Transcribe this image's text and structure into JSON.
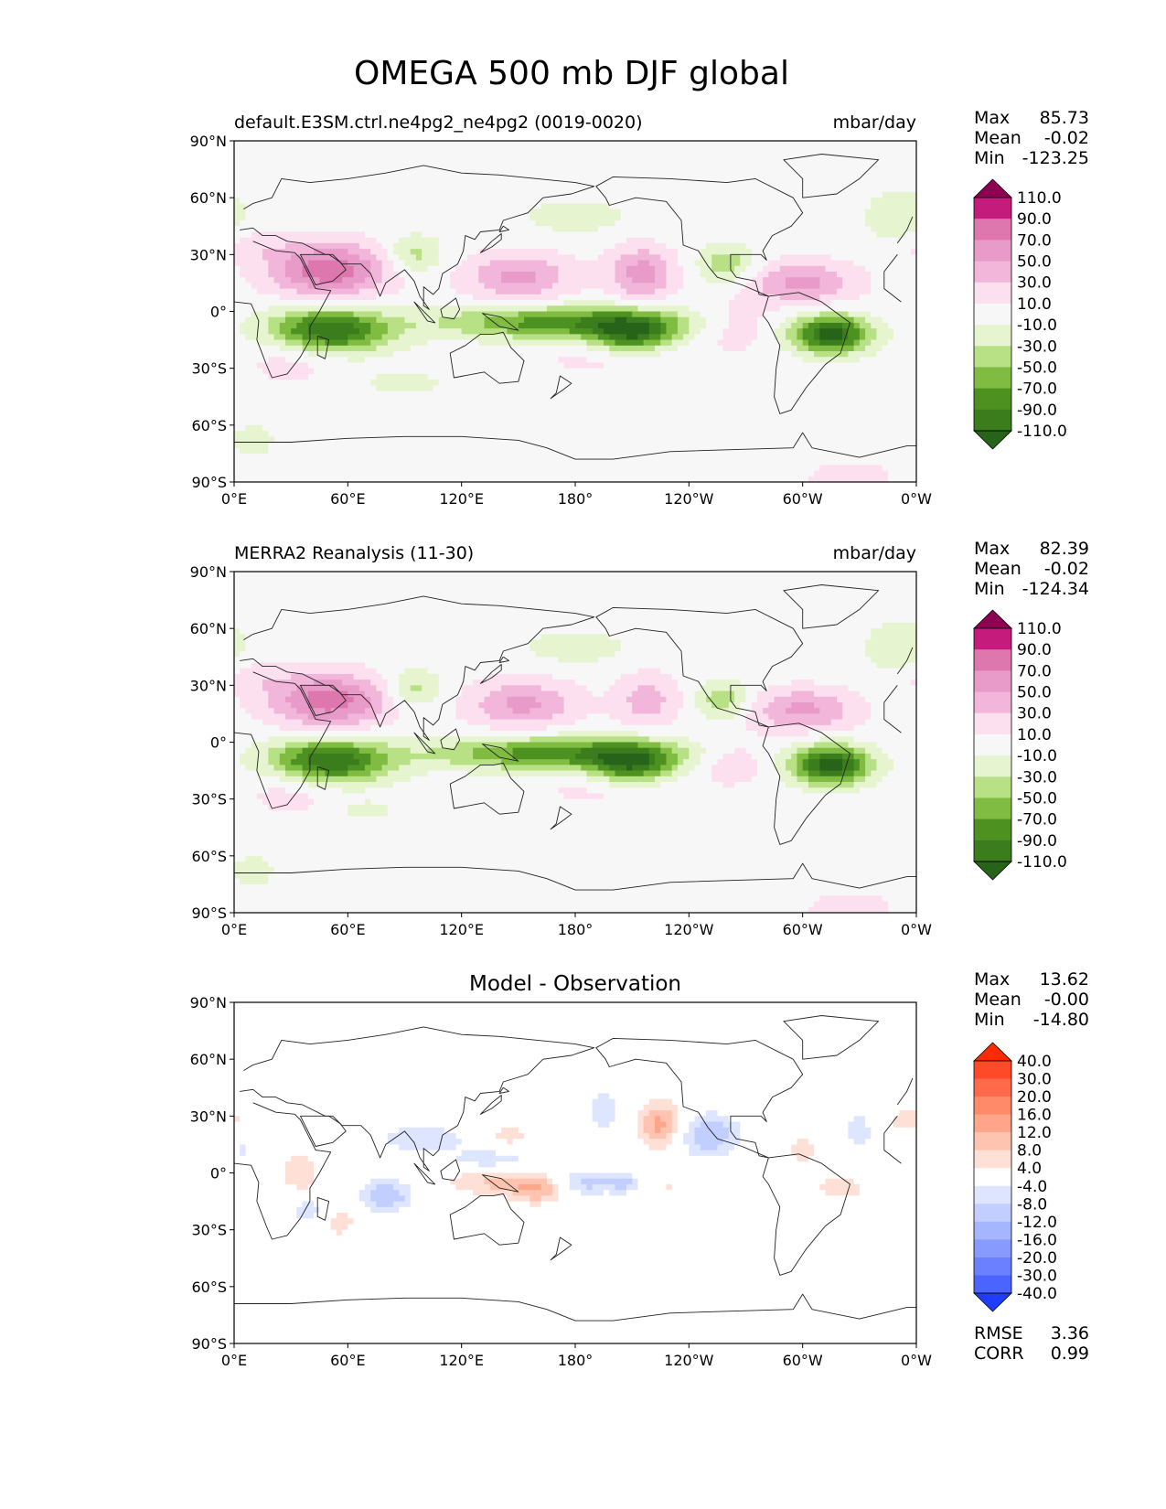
{
  "figure": {
    "title": "OMEGA 500 mb DJF global"
  },
  "axes": {
    "lat_ticks": [
      "90°N",
      "60°N",
      "30°N",
      "0°",
      "30°S",
      "60°S",
      "90°S"
    ],
    "lon_ticks": [
      "0°E",
      "60°E",
      "120°E",
      "180°",
      "120°W",
      "60°W",
      "0°W"
    ]
  },
  "colors": {
    "land_outline": "#222222",
    "map_background_fields": "#f7f7f7",
    "map_background_diff": "#ffffff"
  },
  "colorbars": {
    "fields": {
      "labels": [
        "110.0",
        "90.0",
        "70.0",
        "50.0",
        "30.0",
        "10.0",
        "-10.0",
        "-30.0",
        "-50.0",
        "-70.0",
        "-90.0",
        "-110.0"
      ],
      "colors": [
        "#8e0152",
        "#c51b7d",
        "#de77ae",
        "#e89ac8",
        "#f1b6da",
        "#fde0ef",
        "#f7f7f7",
        "#e6f5d0",
        "#b8e186",
        "#7fbc41",
        "#4d9221",
        "#3b7d1d",
        "#276419"
      ]
    },
    "diff": {
      "labels": [
        "40.0",
        "30.0",
        "20.0",
        "16.0",
        "12.0",
        "8.0",
        "4.0",
        "-4.0",
        "-8.0",
        "-12.0",
        "-16.0",
        "-20.0",
        "-30.0",
        "-40.0"
      ],
      "colors": [
        "#ff2a00",
        "#ff4a2a",
        "#ff6a4a",
        "#ff8a6a",
        "#ffa58a",
        "#ffc4b0",
        "#ffe0d6",
        "#ffffff",
        "#dde5ff",
        "#c2ceff",
        "#a5b5ff",
        "#869aff",
        "#6a80ff",
        "#4b64ff",
        "#1f3dff"
      ]
    }
  },
  "chart_data": [
    {
      "type": "heatmap",
      "panel": "test",
      "title": "default.E3SM.ctrl.ne4pg2_ne4pg2 (0019-0020)",
      "units": "mbar/day",
      "stats": {
        "max": "85.73",
        "mean": "-0.02",
        "min": "-123.25"
      },
      "xlim": [
        0,
        360
      ],
      "ylim": [
        -90,
        90
      ],
      "features": [
        {
          "lon": 50,
          "lat": 22,
          "peak": 85,
          "sx": 22,
          "sy": 10
        },
        {
          "lon": 150,
          "lat": 18,
          "peak": 55,
          "sx": 20,
          "sy": 9
        },
        {
          "lon": 215,
          "lat": 20,
          "peak": 60,
          "sx": 12,
          "sy": 10
        },
        {
          "lon": 300,
          "lat": 15,
          "peak": 55,
          "sx": 20,
          "sy": 8
        },
        {
          "lon": 265,
          "lat": -8,
          "peak": 25,
          "sx": 14,
          "sy": 9
        },
        {
          "lon": 30,
          "lat": -25,
          "peak": 20,
          "sx": 18,
          "sy": 10
        },
        {
          "lon": 195,
          "lat": -25,
          "peak": 15,
          "sx": 30,
          "sy": 8
        },
        {
          "lon": 10,
          "lat": 35,
          "peak": 20,
          "sx": 12,
          "sy": 6
        },
        {
          "lon": 325,
          "lat": -88,
          "peak": 20,
          "sx": 18,
          "sy": 7
        },
        {
          "lon": 50,
          "lat": -10,
          "peak": -110,
          "sx": 22,
          "sy": 8
        },
        {
          "lon": 175,
          "lat": -6,
          "peak": -85,
          "sx": 45,
          "sy": 6
        },
        {
          "lon": 210,
          "lat": -12,
          "peak": -90,
          "sx": 15,
          "sy": 7
        },
        {
          "lon": 315,
          "lat": -12,
          "peak": -120,
          "sx": 14,
          "sy": 7
        },
        {
          "lon": 95,
          "lat": 30,
          "peak": -40,
          "sx": 10,
          "sy": 7
        },
        {
          "lon": 260,
          "lat": 25,
          "peak": -45,
          "sx": 10,
          "sy": 7
        },
        {
          "lon": 180,
          "lat": 50,
          "peak": -22,
          "sx": 20,
          "sy": 6
        },
        {
          "lon": 350,
          "lat": 50,
          "peak": -25,
          "sx": 12,
          "sy": 10
        },
        {
          "lon": 90,
          "lat": -38,
          "peak": -22,
          "sx": 15,
          "sy": 4
        },
        {
          "lon": 10,
          "lat": -68,
          "peak": -22,
          "sx": 8,
          "sy": 6
        }
      ]
    },
    {
      "type": "heatmap",
      "panel": "reference",
      "title": "MERRA2 Reanalysis (11-30)",
      "units": "mbar/day",
      "stats": {
        "max": "82.39",
        "mean": "-0.02",
        "min": "-124.34"
      },
      "xlim": [
        0,
        360
      ],
      "ylim": [
        -90,
        90
      ],
      "features": [
        {
          "lon": 50,
          "lat": 22,
          "peak": 82,
          "sx": 22,
          "sy": 10
        },
        {
          "lon": 152,
          "lat": 20,
          "peak": 55,
          "sx": 20,
          "sy": 9
        },
        {
          "lon": 218,
          "lat": 22,
          "peak": 40,
          "sx": 12,
          "sy": 10
        },
        {
          "lon": 300,
          "lat": 17,
          "peak": 55,
          "sx": 20,
          "sy": 8
        },
        {
          "lon": 262,
          "lat": -10,
          "peak": 25,
          "sx": 14,
          "sy": 9
        },
        {
          "lon": 30,
          "lat": -25,
          "peak": 20,
          "sx": 18,
          "sy": 10
        },
        {
          "lon": 195,
          "lat": -25,
          "peak": 15,
          "sx": 30,
          "sy": 8
        },
        {
          "lon": 10,
          "lat": 35,
          "peak": 20,
          "sx": 12,
          "sy": 6
        },
        {
          "lon": 325,
          "lat": -88,
          "peak": 20,
          "sx": 18,
          "sy": 7
        },
        {
          "lon": 50,
          "lat": -10,
          "peak": -110,
          "sx": 22,
          "sy": 8
        },
        {
          "lon": 172,
          "lat": -6,
          "peak": -85,
          "sx": 45,
          "sy": 6
        },
        {
          "lon": 210,
          "lat": -12,
          "peak": -90,
          "sx": 15,
          "sy": 7
        },
        {
          "lon": 315,
          "lat": -12,
          "peak": -124,
          "sx": 14,
          "sy": 7
        },
        {
          "lon": 95,
          "lat": 28,
          "peak": -40,
          "sx": 10,
          "sy": 7
        },
        {
          "lon": 258,
          "lat": 22,
          "peak": -45,
          "sx": 10,
          "sy": 7
        },
        {
          "lon": 180,
          "lat": 50,
          "peak": -22,
          "sx": 20,
          "sy": 6
        },
        {
          "lon": 350,
          "lat": 50,
          "peak": -25,
          "sx": 12,
          "sy": 10
        },
        {
          "lon": 70,
          "lat": -36,
          "peak": -18,
          "sx": 12,
          "sy": 4
        },
        {
          "lon": 10,
          "lat": -68,
          "peak": -22,
          "sx": 8,
          "sy": 6
        }
      ]
    },
    {
      "type": "heatmap",
      "panel": "difference",
      "title": "Model - Observation",
      "stats": {
        "max": "13.62",
        "mean": "-0.00",
        "min": "-14.80"
      },
      "metrics": {
        "rmse": "3.36",
        "corr": "0.99"
      },
      "xlim": [
        0,
        360
      ],
      "ylim": [
        -90,
        90
      ],
      "features": [
        {
          "lon": 225,
          "lat": 25,
          "peak": 14,
          "sx": 8,
          "sy": 9
        },
        {
          "lon": 140,
          "lat": -5,
          "peak": 9,
          "sx": 20,
          "sy": 5
        },
        {
          "lon": 160,
          "lat": -10,
          "peak": 9,
          "sx": 10,
          "sy": 5
        },
        {
          "lon": 35,
          "lat": 0,
          "peak": 7,
          "sx": 8,
          "sy": 8
        },
        {
          "lon": 55,
          "lat": -25,
          "peak": 6,
          "sx": 8,
          "sy": 8
        },
        {
          "lon": 145,
          "lat": 20,
          "peak": 6,
          "sx": 8,
          "sy": 5
        },
        {
          "lon": 300,
          "lat": 13,
          "peak": 6,
          "sx": 6,
          "sy": 7
        },
        {
          "lon": 320,
          "lat": -8,
          "peak": 6,
          "sx": 12,
          "sy": 5
        },
        {
          "lon": 355,
          "lat": 28,
          "peak": 6,
          "sx": 8,
          "sy": 6
        },
        {
          "lon": 230,
          "lat": -8,
          "peak": 5,
          "sx": 3,
          "sy": 3
        },
        {
          "lon": 80,
          "lat": -12,
          "peak": -12,
          "sx": 10,
          "sy": 6
        },
        {
          "lon": 185,
          "lat": -5,
          "peak": -10,
          "sx": 10,
          "sy": 5
        },
        {
          "lon": 205,
          "lat": -5,
          "peak": -9,
          "sx": 6,
          "sy": 4
        },
        {
          "lon": 250,
          "lat": 20,
          "peak": -12,
          "sx": 12,
          "sy": 8
        },
        {
          "lon": 195,
          "lat": 32,
          "peak": -8,
          "sx": 5,
          "sy": 8
        },
        {
          "lon": 100,
          "lat": 18,
          "peak": -8,
          "sx": 16,
          "sy": 5
        },
        {
          "lon": 135,
          "lat": 7,
          "peak": -7,
          "sx": 15,
          "sy": 4
        },
        {
          "lon": 40,
          "lat": -20,
          "peak": -7,
          "sx": 8,
          "sy": 5
        },
        {
          "lon": 5,
          "lat": 12,
          "peak": -5,
          "sx": 4,
          "sy": 4
        },
        {
          "lon": 330,
          "lat": 22,
          "peak": -7,
          "sx": 5,
          "sy": 7
        }
      ]
    }
  ],
  "labels": {
    "stat_max": "Max",
    "stat_mean": "Mean",
    "stat_min": "Min",
    "rmse": "RMSE",
    "corr": "CORR"
  }
}
